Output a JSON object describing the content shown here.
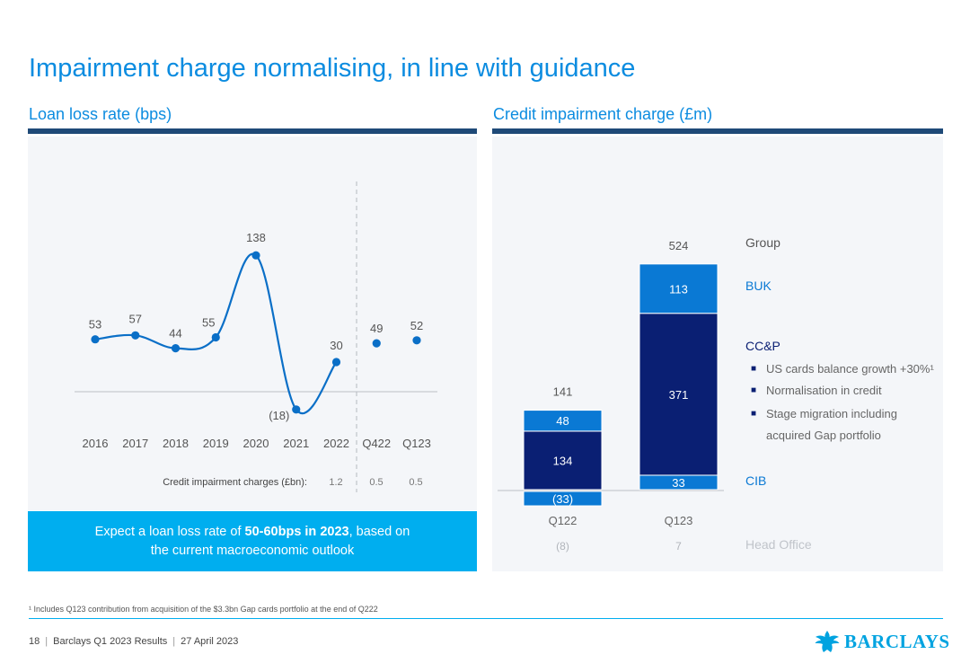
{
  "title": "Impairment charge normalising, in line with guidance",
  "left_panel": {
    "title": "Loan loss rate (bps)",
    "charges_label": "Credit impairment charges (£bn):",
    "charges": [
      "1.2",
      "0.5",
      "0.5"
    ],
    "callout": {
      "prefix": "Expect a loan loss rate of ",
      "highlight": "50-60bps in 2023",
      "suffix": ", based on",
      "line2": "the current macroeconomic  outlook"
    }
  },
  "right_panel": {
    "title": "Credit impairment charge (£m)",
    "legend": {
      "group": "Group",
      "buk": "BUK",
      "ccp": "CC&P",
      "ccp_bullets": [
        "US cards balance growth +30%¹",
        "Normalisation in credit",
        "Stage migration including",
        "acquired Gap portfolio"
      ],
      "cib": "CIB",
      "head_office": "Head Office"
    },
    "colors": {
      "buk": "#0a79d4",
      "ccp": "#0a1f73",
      "cib": "#0a79d4",
      "head_office": "#0a79d4"
    }
  },
  "chart_data": [
    {
      "type": "line",
      "title": "Loan loss rate (bps)",
      "categories": [
        "2016",
        "2017",
        "2018",
        "2019",
        "2020",
        "2021",
        "2022",
        "Q422",
        "Q123"
      ],
      "values": [
        53,
        57,
        44,
        55,
        138,
        -18,
        30,
        49,
        52
      ],
      "value_labels": [
        "53",
        "57",
        "44",
        "55",
        "138",
        "(18)",
        "30",
        "49",
        "52"
      ],
      "line_segment": [
        "2016",
        "2022"
      ],
      "points_only": [
        "Q422",
        "Q123"
      ],
      "color": "#0a6fc7"
    },
    {
      "type": "bar",
      "stacked": true,
      "title": "Credit impairment charge (£m)",
      "categories": [
        "Q122",
        "Q123"
      ],
      "totals": [
        "141",
        "524"
      ],
      "series": [
        {
          "name": "CIB",
          "values": [
            -33,
            33
          ],
          "labels": [
            "(33)",
            "33"
          ]
        },
        {
          "name": "CC&P",
          "values": [
            134,
            371
          ],
          "labels": [
            "134",
            "371"
          ]
        },
        {
          "name": "BUK",
          "values": [
            48,
            113
          ],
          "labels": [
            "48",
            "113"
          ]
        },
        {
          "name": "Head Office",
          "values": [
            -8,
            7
          ],
          "labels": [
            "(8)",
            "7"
          ]
        }
      ]
    }
  ],
  "footnote": "¹ Includes Q123 contribution from acquisition of the $3.3bn Gap cards portfolio at the end of Q222",
  "footer": {
    "page": "18",
    "doc": "Barclays Q1 2023 Results",
    "date": "27 April 2023"
  },
  "logo": {
    "text": "BARCLAYS",
    "icon": "eagle-icon"
  }
}
